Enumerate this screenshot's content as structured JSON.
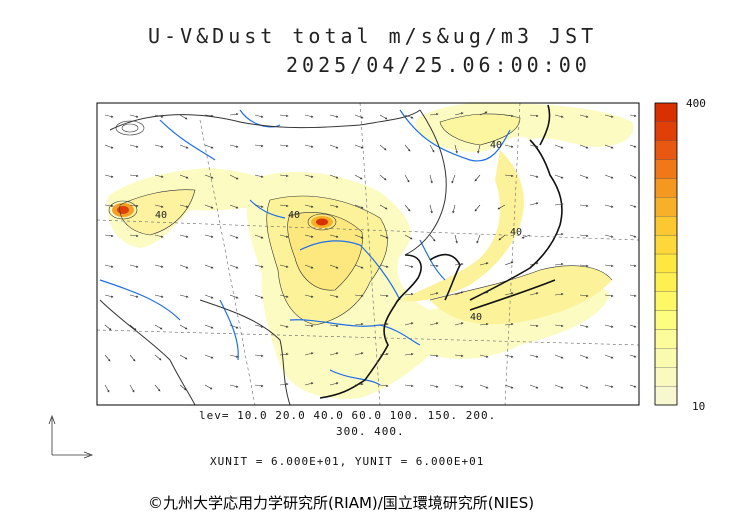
{
  "title": {
    "line1": "U-V&Dust total m/s&ug/m3 JST",
    "line2": "2025/04/25.06:00:00"
  },
  "colorbar": {
    "max_label": "400",
    "min_label": "10",
    "colors": [
      "#f8f8d0",
      "#fafac0",
      "#fbfbb0",
      "#fcfc9a",
      "#fdfd80",
      "#fef866",
      "#fef050",
      "#fee840",
      "#fed838",
      "#fcc830",
      "#f8b028",
      "#f49820",
      "#f07818",
      "#e85810",
      "#e04008",
      "#d83000"
    ]
  },
  "contour_levels": {
    "line1": "lev= 10.0 20.0 40.0 60.0 100. 150. 200.",
    "line2": "300. 400."
  },
  "map_labels": [
    "40",
    "40",
    "40",
    "40",
    "40"
  ],
  "units": "XUNIT = 6.000E+01, YUNIT = 6.000E+01",
  "copyright": "©九州大学応用力学研究所(RIAM)/国立環境研究所(NIES)"
}
